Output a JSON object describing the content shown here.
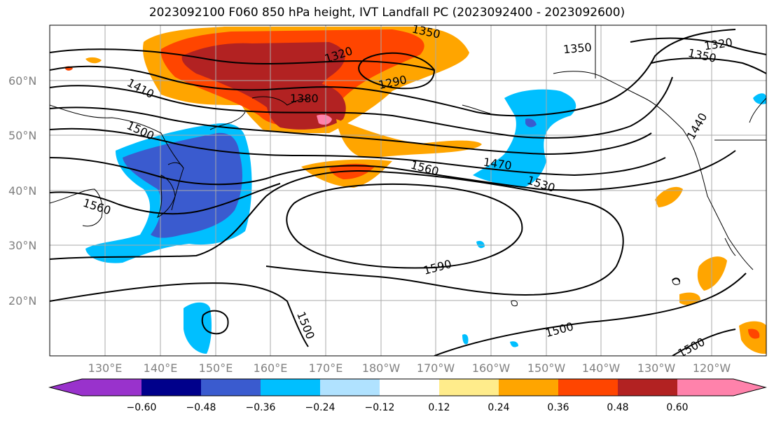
{
  "title": "2023092100 F060 850 hPa height, IVT Landfall PC (2023092400 - 2023092600)",
  "map": {
    "lat_labels": [
      "60°N",
      "50°N",
      "40°N",
      "30°N",
      "20°N"
    ],
    "lon_labels": [
      "130°E",
      "140°E",
      "150°E",
      "160°E",
      "170°E",
      "180°W",
      "170°W",
      "160°W",
      "150°W",
      "140°W",
      "130°W",
      "120°W"
    ],
    "contour_labels": [
      "1350",
      "1320",
      "1350",
      "1350",
      "1320",
      "1290",
      "1380",
      "1410",
      "1500",
      "1470",
      "1560",
      "1530",
      "1560",
      "1590",
      "1500",
      "1500",
      "1500",
      "1440"
    ],
    "fill_colors": {
      "neg_060": "#9932cc",
      "neg_048": "#00008b",
      "neg_036": "#3a5bcf",
      "neg_024": "#00bfff",
      "neg_012": "#b0e2ff",
      "zero": "#ffffff",
      "pos_012": "#ffec8b",
      "pos_024": "#ffa500",
      "pos_036": "#ff4500",
      "pos_048": "#b22222",
      "pos_060": "#ff82ab"
    }
  },
  "colorbar": {
    "ticks": [
      "−0.60",
      "−0.48",
      "−0.36",
      "−0.24",
      "−0.12",
      "0.12",
      "0.24",
      "0.36",
      "0.48",
      "0.60"
    ],
    "colors": [
      "#9932cc",
      "#00008b",
      "#3a5bcf",
      "#00bfff",
      "#b0e2ff",
      "#ffffff",
      "#ffec8b",
      "#ffa500",
      "#ff4500",
      "#b22222",
      "#ff82ab"
    ]
  }
}
